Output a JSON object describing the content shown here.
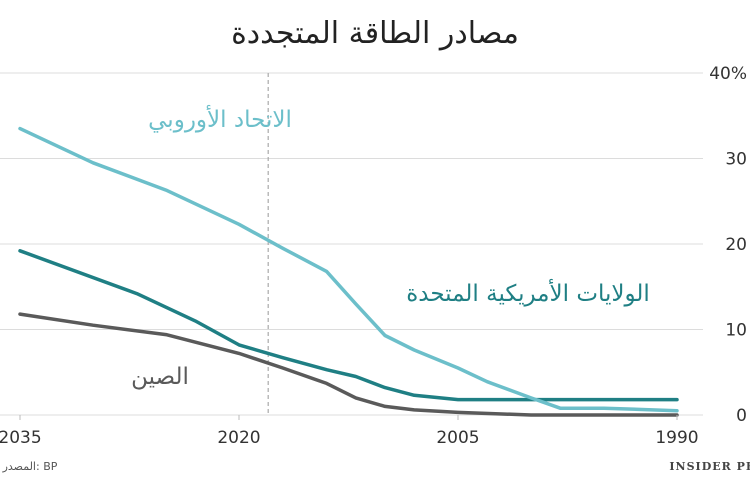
{
  "chart_data": {
    "type": "line",
    "title": "مصادر الطاقة المتجددة",
    "xlim": [
      1990,
      2035
    ],
    "x_reversed": true,
    "ylim": [
      0,
      40
    ],
    "x_ticks": [
      "2035",
      "2020",
      "2005",
      "1990"
    ],
    "x_tick_values": [
      2035,
      2020,
      2005,
      1990
    ],
    "y_ticks": [
      "40%",
      "30",
      "20",
      "10",
      "0"
    ],
    "y_tick_values": [
      40,
      30,
      20,
      10,
      0
    ],
    "reference_line": 2018,
    "grid": "horizontal",
    "series": [
      {
        "name": "الاتحاد الأوروبي",
        "color": "#6cbfca",
        "points": [
          [
            1990,
            0.5
          ],
          [
            1995,
            0.8
          ],
          [
            1998,
            0.8
          ],
          [
            2000,
            2.0
          ],
          [
            2003,
            3.9
          ],
          [
            2005,
            5.5
          ],
          [
            2008,
            7.6
          ],
          [
            2010,
            9.3
          ],
          [
            2012,
            13.0
          ],
          [
            2014,
            16.8
          ],
          [
            2017,
            19.5
          ],
          [
            2020,
            22.3
          ],
          [
            2025,
            26.3
          ],
          [
            2030,
            29.5
          ],
          [
            2035,
            33.5
          ]
        ]
      },
      {
        "name": "الولايات الأمريكية المتحدة",
        "color": "#1f7f84",
        "points": [
          [
            1990,
            1.8
          ],
          [
            1995,
            1.8
          ],
          [
            2000,
            1.8
          ],
          [
            2005,
            1.8
          ],
          [
            2008,
            2.3
          ],
          [
            2010,
            3.2
          ],
          [
            2012,
            4.5
          ],
          [
            2014,
            5.3
          ],
          [
            2017,
            6.7
          ],
          [
            2020,
            8.2
          ],
          [
            2023,
            11.0
          ],
          [
            2027,
            14.2
          ],
          [
            2035,
            19.2
          ]
        ]
      },
      {
        "name": "الصين",
        "color": "#5a5a5a",
        "points": [
          [
            1990,
            0
          ],
          [
            2000,
            0
          ],
          [
            2005,
            0.3
          ],
          [
            2008,
            0.6
          ],
          [
            2010,
            1.0
          ],
          [
            2012,
            2.0
          ],
          [
            2014,
            3.7
          ],
          [
            2017,
            5.5
          ],
          [
            2020,
            7.2
          ],
          [
            2025,
            9.4
          ],
          [
            2030,
            10.5
          ],
          [
            2035,
            11.8
          ]
        ]
      }
    ]
  },
  "footer": {
    "source": "المصدر: BP",
    "brand": "INSIDER PRO"
  }
}
